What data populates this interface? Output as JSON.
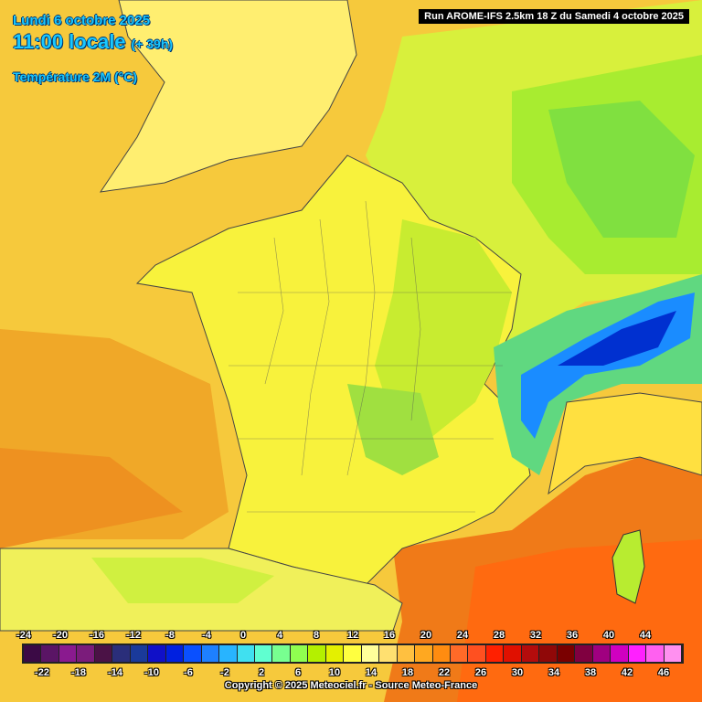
{
  "header": {
    "date": "Lundi 6 octobre 2025",
    "time": "11:00 locale",
    "lead": "(+ 39h)",
    "parameter": "Température 2M (°C)",
    "run": "Run AROME-IFS 2.5km 18 Z du Samedi 4 octobre 2025"
  },
  "legend": {
    "top_ticks": [
      "-24",
      "-20",
      "-16",
      "-12",
      "-8",
      "-4",
      "0",
      "4",
      "8",
      "12",
      "16",
      "20",
      "24",
      "28",
      "32",
      "36",
      "40",
      "44"
    ],
    "bottom_ticks": [
      "-22",
      "-18",
      "-14",
      "-10",
      "-6",
      "-2",
      "2",
      "6",
      "10",
      "14",
      "18",
      "22",
      "26",
      "30",
      "34",
      "38",
      "42",
      "46"
    ],
    "colors": [
      "#3b0a45",
      "#5a1565",
      "#8a1a8f",
      "#7b1c7b",
      "#4b1246",
      "#2a2e7a",
      "#1a3a9a",
      "#1010c8",
      "#0020e0",
      "#0a50ff",
      "#1e80ff",
      "#28b4ff",
      "#40e0f0",
      "#60ffd0",
      "#78ff90",
      "#90ff50",
      "#b4f000",
      "#e4f000",
      "#ffff40",
      "#ffff9a",
      "#ffe070",
      "#ffc040",
      "#ffa820",
      "#ff8c10",
      "#ff6a28",
      "#ff5020",
      "#ff2000",
      "#e01000",
      "#b40c0c",
      "#900808",
      "#7a0000",
      "#800040",
      "#a00080",
      "#d000c0",
      "#ff20ff",
      "#ff60f0",
      "#ff90f0"
    ]
  },
  "footer": {
    "copyright": "Copyright © 2025 Meteociel.fr - Source Meteo-France"
  }
}
